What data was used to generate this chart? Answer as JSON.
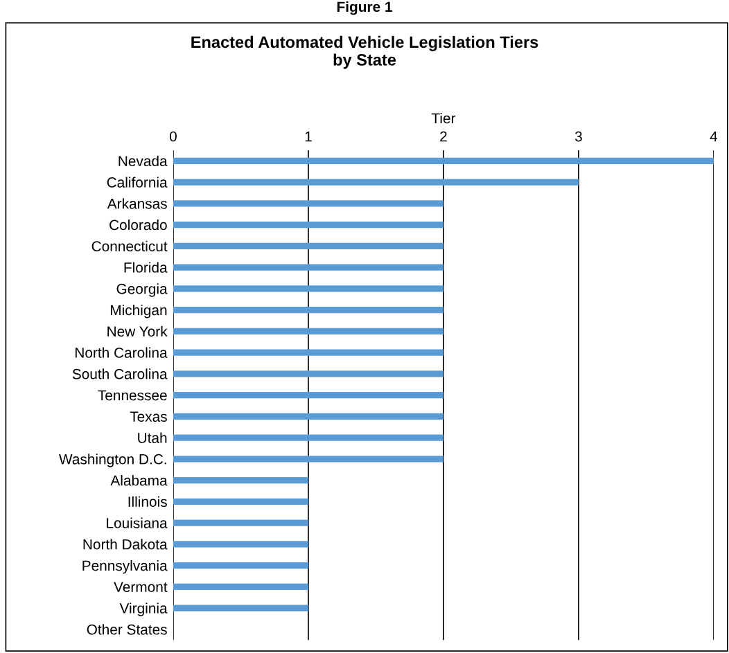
{
  "chart_data": {
    "type": "bar",
    "orientation": "horizontal",
    "title": "Enacted Automated Vehicle Legislation Tiers\nby State",
    "xlabel": "Tier",
    "annotations": [
      "Figure 1"
    ],
    "categories": [
      "Nevada",
      "California",
      "Arkansas",
      "Colorado",
      "Connecticut",
      "Florida",
      "Georgia",
      "Michigan",
      "New York",
      "North Carolina",
      "South Carolina",
      "Tennessee",
      "Texas",
      "Utah",
      "Washington D.C.",
      "Alabama",
      "Illinois",
      "Louisiana",
      "North Dakota",
      "Pennsylvania",
      "Vermont",
      "Virginia",
      "Other States"
    ],
    "values": [
      4,
      3,
      2,
      2,
      2,
      2,
      2,
      2,
      2,
      2,
      2,
      2,
      2,
      2,
      2,
      1,
      1,
      1,
      1,
      1,
      1,
      1,
      0
    ],
    "color": "#5b9bd5",
    "xlim": [
      0,
      4
    ],
    "xticks": [
      0,
      1,
      2,
      3,
      4
    ],
    "grid": "x",
    "legend": false
  }
}
